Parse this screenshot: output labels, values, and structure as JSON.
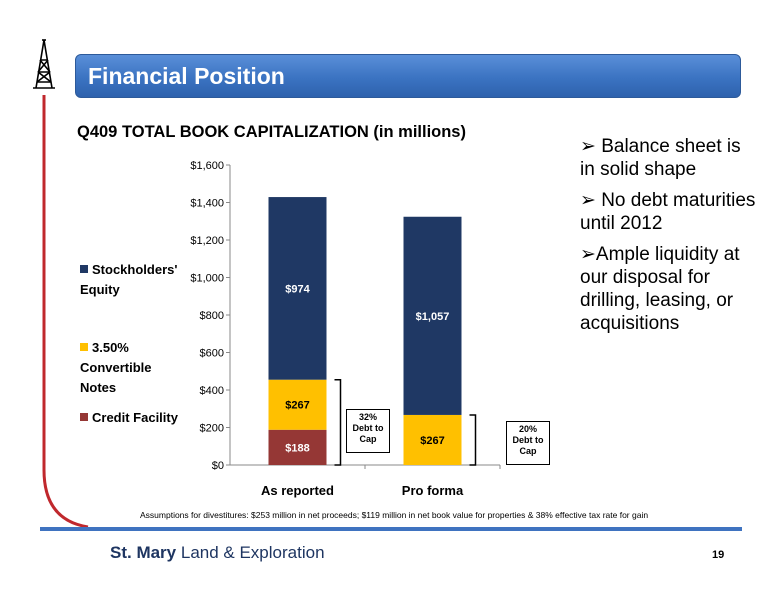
{
  "header": {
    "title": "Financial Position"
  },
  "chart_data": {
    "type": "bar",
    "stacked": true,
    "title": "Q409 TOTAL BOOK CAPITALIZATION (in millions)",
    "categories": [
      "As reported",
      "Pro forma"
    ],
    "series": [
      {
        "name": "Credit Facility",
        "values": [
          188,
          0
        ],
        "labels": [
          "$188",
          ""
        ],
        "color": "#953735"
      },
      {
        "name": "3.50% Convertible Notes",
        "values": [
          267,
          267
        ],
        "labels": [
          "$267",
          "$267"
        ],
        "color": "#ffc000"
      },
      {
        "name": "Stockholders' Equity",
        "values": [
          974,
          1057
        ],
        "labels": [
          "$974",
          "$1,057"
        ],
        "color": "#1f3864"
      }
    ],
    "ylim": [
      0,
      1600
    ],
    "yticks": [
      "$0",
      "$200",
      "$400",
      "$600",
      "$800",
      "$1,000",
      "$1,200",
      "$1,400",
      "$1,600"
    ],
    "legend": {
      "placement": "left",
      "entries": [
        "Stockholders' Equity",
        "3.50% Convertible Notes",
        "Credit Facility"
      ]
    },
    "annotations": [
      {
        "line1": "32%",
        "line2": "Debt to",
        "line3": "Cap"
      },
      {
        "line1": "20%",
        "line2": "Debt to",
        "line3": "Cap"
      }
    ]
  },
  "legend_text": {
    "equity_1": "Stockholders'",
    "equity_2": "Equity",
    "notes_1": "3.50%",
    "notes_2": "Convertible",
    "notes_3": "Notes",
    "credit": "Credit Facility"
  },
  "bullets": [
    "Balance sheet is in solid shape",
    "No debt maturities until 2012",
    "Ample liquidity at our disposal for drilling, leasing, or acquisitions"
  ],
  "footnote": "Assumptions for divestitures: $253 million in net proceeds; $119 million in net book value for properties & 38% effective tax rate for gain",
  "logo": {
    "bold": "St. Mary",
    "rest": " Land & Exploration"
  },
  "page_number": "19",
  "colors": {
    "accent": "#3f73c0",
    "red_line": "#c0282d"
  }
}
